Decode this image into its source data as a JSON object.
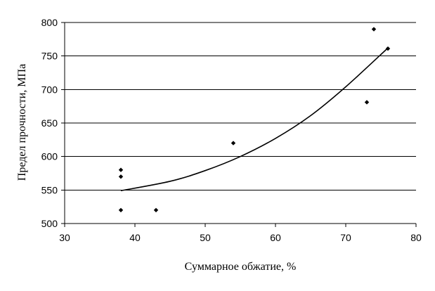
{
  "chart_data": {
    "type": "scatter",
    "title": "",
    "xlabel": "Суммарное обжатие, %",
    "ylabel": "Предел прочности, МПа",
    "xlim": [
      30,
      80
    ],
    "ylim": [
      500,
      800
    ],
    "x_ticks": [
      30,
      40,
      50,
      60,
      70,
      80
    ],
    "y_ticks": [
      500,
      550,
      600,
      650,
      700,
      750,
      800
    ],
    "grid": "horizontal",
    "legend": "none",
    "series": [
      {
        "points": [
          {
            "x": 38,
            "y": 580
          },
          {
            "x": 38,
            "y": 570
          },
          {
            "x": 38,
            "y": 520
          },
          {
            "x": 43,
            "y": 520
          },
          {
            "x": 54,
            "y": 620
          },
          {
            "x": 73,
            "y": 681
          },
          {
            "x": 74,
            "y": 790
          },
          {
            "x": 76,
            "y": 761
          }
        ]
      }
    ],
    "trendline": {
      "type": "polynomial",
      "points": [
        {
          "x": 38,
          "y": 549
        },
        {
          "x": 45,
          "y": 563
        },
        {
          "x": 50,
          "y": 579
        },
        {
          "x": 55,
          "y": 600
        },
        {
          "x": 60,
          "y": 627
        },
        {
          "x": 65,
          "y": 661
        },
        {
          "x": 70,
          "y": 704
        },
        {
          "x": 76,
          "y": 762
        }
      ]
    },
    "colors": {
      "marker": "#000000",
      "line": "#000000",
      "grid": "#000000",
      "background": "#ffffff"
    }
  }
}
